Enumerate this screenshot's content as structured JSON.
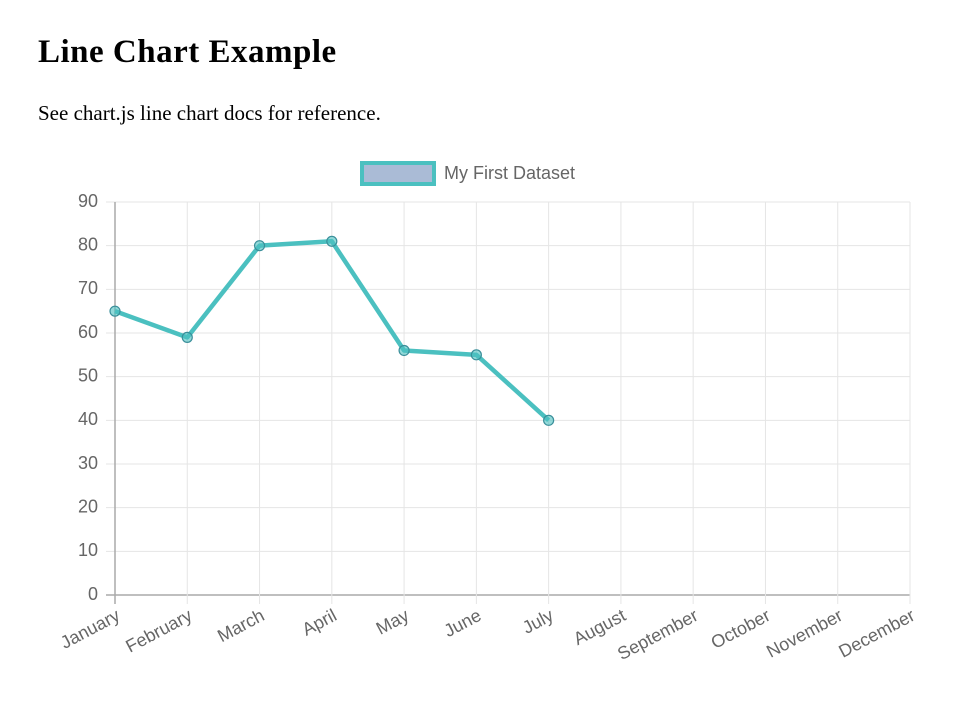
{
  "header": {
    "title": "Line Chart Example",
    "text": "See chart.js line chart docs for reference."
  },
  "chart_data": {
    "type": "line",
    "categories": [
      "January",
      "February",
      "March",
      "April",
      "May",
      "June",
      "July",
      "August",
      "September",
      "October",
      "November",
      "December"
    ],
    "series": [
      {
        "name": "My First Dataset",
        "color": "#4bc0c0",
        "fill_color": "#aabbd6",
        "values": [
          65,
          59,
          80,
          81,
          56,
          55,
          40,
          null,
          null,
          null,
          null,
          null
        ]
      }
    ],
    "ylim": [
      0,
      90
    ],
    "yticks": [
      0,
      10,
      20,
      30,
      40,
      50,
      60,
      70,
      80,
      90
    ],
    "grid": true,
    "legend": "top"
  }
}
